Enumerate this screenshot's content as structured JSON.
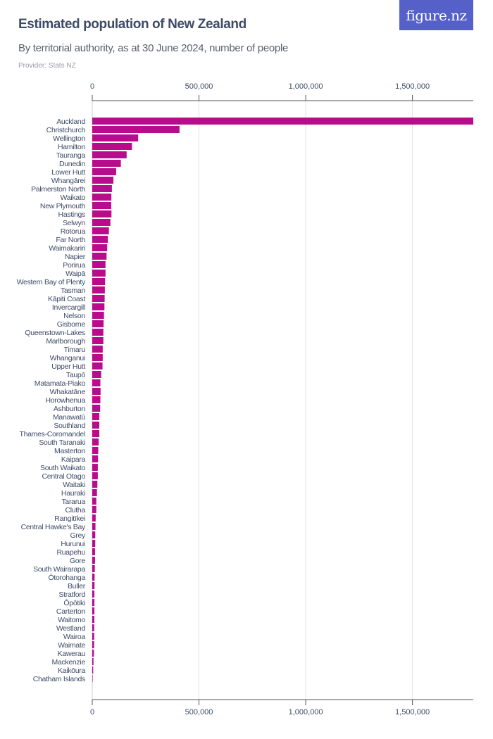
{
  "header": {
    "title": "Estimated population of New Zealand",
    "subtitle": "By territorial authority, as at 30 June 2024, number of people",
    "provider": "Provider: Stats NZ",
    "logo_text": "figure.nz"
  },
  "colors": {
    "bar": "#b90c8c",
    "logo_bg": "#5560c9",
    "text": "#3e4b66"
  },
  "chart_data": {
    "type": "bar",
    "orientation": "horizontal",
    "title": "Estimated population of New Zealand",
    "subtitle": "By territorial authority, as at 30 June 2024, number of people",
    "xlim": [
      0,
      1785000
    ],
    "xticks": [
      0,
      500000,
      1000000,
      1500000
    ],
    "xtick_labels": [
      "0",
      "500,000",
      "1,000,000",
      "1,500,000"
    ],
    "grid": true,
    "categories": [
      "Auckland",
      "Christchurch",
      "Wellington",
      "Hamilton",
      "Tauranga",
      "Dunedin",
      "Lower Hutt",
      "Whangārei",
      "Palmerston North",
      "Waikato",
      "New Plymouth",
      "Hastings",
      "Selwyn",
      "Rotorua",
      "Far North",
      "Waimakariri",
      "Napier",
      "Porirua",
      "Waipā",
      "Western Bay of Plenty",
      "Tasman",
      "Kāpiti Coast",
      "Invercargill",
      "Nelson",
      "Gisborne",
      "Queenstown-Lakes",
      "Marlborough",
      "Timaru",
      "Whanganui",
      "Upper Hutt",
      "Taupō",
      "Matamata-Piako",
      "Whakatāne",
      "Horowhenua",
      "Ashburton",
      "Manawatū",
      "Southland",
      "Thames-Coromandel",
      "South Taranaki",
      "Masterton",
      "Kaipara",
      "South Waikato",
      "Central Otago",
      "Waitaki",
      "Hauraki",
      "Tararua",
      "Clutha",
      "Rangitīkei",
      "Central Hawke's Bay",
      "Grey",
      "Hurunui",
      "Ruapehu",
      "Gore",
      "South Wairarapa",
      "Ōtorohanga",
      "Buller",
      "Stratford",
      "Ōpōtiki",
      "Carterton",
      "Waitomo",
      "Westland",
      "Wairoa",
      "Waimate",
      "Kawerau",
      "Mackenzie",
      "Kaikōura",
      "Chatham Islands"
    ],
    "values": [
      1798300,
      408700,
      215000,
      186000,
      161000,
      134000,
      112000,
      99000,
      92000,
      89500,
      89000,
      90000,
      85000,
      78000,
      73000,
      70000,
      67000,
      62000,
      62000,
      60000,
      59000,
      58000,
      57000,
      55000,
      53000,
      52000,
      52000,
      49000,
      49000,
      48000,
      42000,
      38000,
      39000,
      38000,
      37000,
      33000,
      33000,
      33000,
      30000,
      28000,
      27000,
      26000,
      26000,
      24000,
      22000,
      19000,
      19000,
      16000,
      15000,
      14000,
      14000,
      13000,
      13000,
      12000,
      11000,
      10500,
      10000,
      10000,
      10000,
      9800,
      9000,
      9000,
      8500,
      7800,
      5800,
      4400,
      600
    ]
  }
}
